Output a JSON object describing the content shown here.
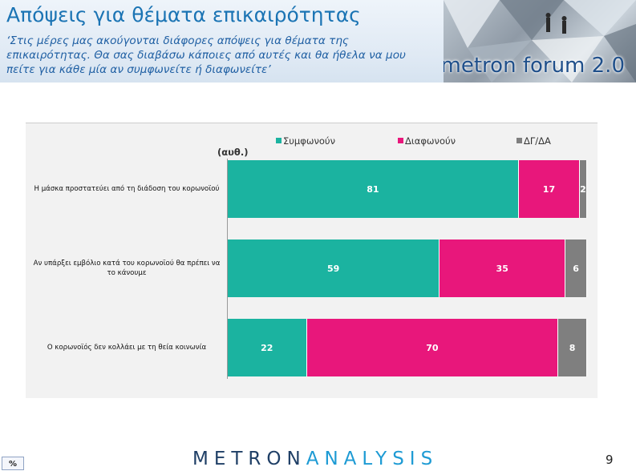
{
  "header": {
    "title": "Απόψεις για θέματα επικαιρότητας",
    "subtitle": "‘Στις μέρες μας ακούγονται διάφορες απόψεις για θέματα της επικαιρότητας. Θα σας διαβάσω κάποιες από αυτές και θα ήθελα να μου πείτε για κάθε μία αν συμφωνείτε ή διαφωνείτε’",
    "logo_text": "metron forum 2.0"
  },
  "chart_data": {
    "type": "bar",
    "orientation": "horizontal",
    "stacked": true,
    "unit_label": "(αυθ.)",
    "legend_position": "top",
    "categories": [
      "Η μάσκα προστατεύει από τη διάδοση του κορωνοϊού",
      "Αν υπάρξει εμβόλιο κατά του κορωνοϊού θα πρέπει να το κάνουμε",
      "Ο κορωνοϊός δεν κολλάει με τη θεία κοινωνία"
    ],
    "series": [
      {
        "name": "Συμφωνούν",
        "color": "#1bb3a0",
        "values": [
          81,
          59,
          22
        ]
      },
      {
        "name": "Διαφωνούν",
        "color": "#e8177b",
        "values": [
          17,
          35,
          70
        ]
      },
      {
        "name": "ΔΓ/ΔΑ",
        "color": "#7f7f7f",
        "values": [
          2,
          6,
          8
        ]
      }
    ],
    "xlim": [
      0,
      100
    ]
  },
  "footer": {
    "badge": "%",
    "brand_part1": "METRON",
    "brand_part2": "ANALYSIS",
    "page_number": "9"
  }
}
